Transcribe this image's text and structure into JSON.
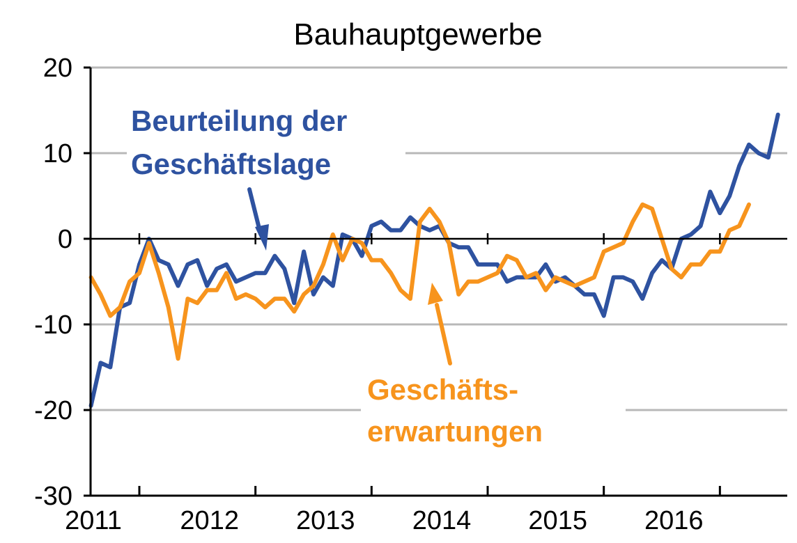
{
  "chart_data": {
    "type": "line",
    "title": "Bauhauptgewerbe",
    "xlabel": "",
    "ylabel": "",
    "ylim": [
      -30,
      20
    ],
    "xlim": [
      2010.58,
      2016.58
    ],
    "yticks": [
      20,
      10,
      0,
      -10,
      -20,
      -30
    ],
    "xtick_labels": [
      "2011",
      "2012",
      "2013",
      "2014",
      "2015",
      "2016"
    ],
    "grid": "horizontal",
    "zero_line": true,
    "colors": {
      "blue": "#2E52A0",
      "orange": "#F7941D",
      "grid": "#b8b8b8"
    },
    "annotations": {
      "blue_label": [
        "Beurteilung der",
        "Geschäftslage"
      ],
      "orange_label": [
        "Geschäfts-",
        "erwartungen"
      ]
    },
    "series": [
      {
        "color": "#2E52A0",
        "x_start": "2010-08",
        "values": [
          -19.5,
          -14.5,
          -15,
          -8,
          -7.5,
          -3,
          0,
          -2.5,
          -3,
          -5.5,
          -3,
          -2.5,
          -5.5,
          -3.5,
          -3,
          -5,
          -4.5,
          -4,
          -4,
          -2,
          -3.5,
          -7.5,
          -1.5,
          -6.5,
          -4.5,
          -5.5,
          0.5,
          0,
          -2,
          1.5,
          2,
          1,
          1,
          2.5,
          1.5,
          1,
          1.5,
          -0.5,
          -1,
          -1,
          -3,
          -3,
          -3,
          -5,
          -4.5,
          -4.5,
          -4.5,
          -3,
          -5,
          -4.5,
          -5.5,
          -6.5,
          -6.5,
          -9,
          -4.5,
          -4.5,
          -5,
          -7,
          -4,
          -2.5,
          -3.5,
          0,
          0.5,
          1.5,
          5.5,
          3,
          5,
          8.5,
          11,
          10,
          9.5,
          14.5
        ]
      },
      {
        "color": "#F7941D",
        "x_start": "2010-08",
        "values": [
          -4.5,
          -6.5,
          -9,
          -8,
          -5,
          -4,
          -0.5,
          -4,
          -8,
          -14,
          -7,
          -7.5,
          -6,
          -6,
          -4,
          -7,
          -6.5,
          -7,
          -8,
          -7,
          -7,
          -8.5,
          -6.5,
          -5.5,
          -3,
          0.5,
          -2.5,
          0,
          -0.5,
          -2.5,
          -2.5,
          -4,
          -6,
          -7,
          2,
          3.5,
          2,
          -0.5,
          -6.5,
          -5,
          -5,
          -4.5,
          -4,
          -2,
          -2.5,
          -4.5,
          -4,
          -6,
          -4.5,
          -5,
          -5.5,
          -5,
          -4.5,
          -1.5,
          -1,
          -0.5,
          2,
          4,
          3.5,
          0,
          -3.5,
          -4.5,
          -3,
          -3,
          -1.5,
          -1.5,
          1,
          1.5,
          4
        ]
      }
    ]
  }
}
